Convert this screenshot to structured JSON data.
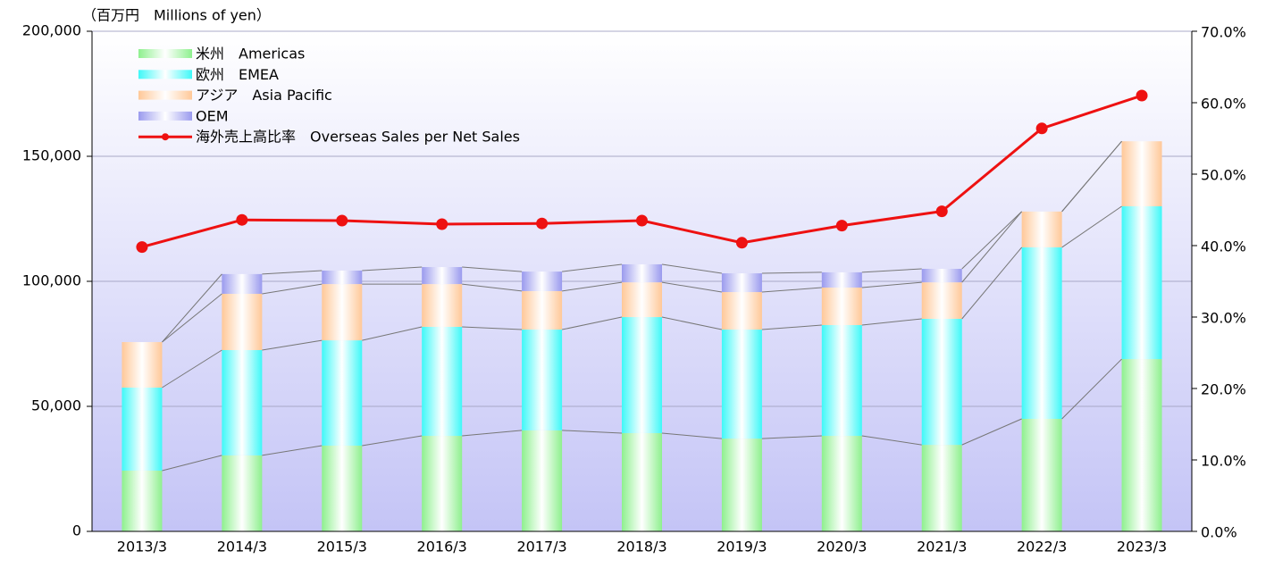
{
  "chart_data": {
    "type": "bar",
    "y_label": "（百万円　Millions of yen）",
    "categories": [
      "2013/3",
      "2014/3",
      "2015/3",
      "2016/3",
      "2017/3",
      "2018/3",
      "2019/3",
      "2020/3",
      "2021/3",
      "2022/3",
      "2023/3"
    ],
    "series": [
      {
        "name": "米州　Americas",
        "color": "#8ef08e",
        "values": [
          24.3,
          30.4,
          34.3,
          38.2,
          40.4,
          39.3,
          37.1,
          38.2,
          34.6,
          45.0,
          68.9
        ]
      },
      {
        "name": "欧州　EMEA",
        "color": "#3ff8f8",
        "values": [
          33.2,
          42.1,
          42.1,
          43.6,
          40.3,
          46.4,
          43.6,
          44.3,
          50.4,
          68.6,
          61.1
        ]
      },
      {
        "name": "アジア　Asia Pacific",
        "color": "#ffc898",
        "values": [
          18.2,
          22.5,
          22.5,
          17.1,
          15.4,
          13.9,
          15.0,
          15.0,
          14.6,
          14.3,
          26.0
        ]
      },
      {
        "name": "OEM",
        "color": "#9a9aee",
        "values": [
          0,
          7.9,
          5.4,
          6.8,
          7.8,
          7.2,
          7.5,
          6.1,
          5.4,
          0,
          0
        ]
      },
      {
        "name": "海外売上高比率　Overseas Sales per Net Sales",
        "color": "#ee1111",
        "type": "line",
        "axis": "y2",
        "values": [
          39.8,
          43.6,
          43.5,
          43.0,
          43.1,
          43.5,
          40.4,
          42.8,
          44.8,
          56.4,
          61.0
        ]
      }
    ],
    "ylim": [
      0,
      200000
    ],
    "yticks": [
      0,
      {
        "value": 50000,
        "label": "50,000"
      },
      {
        "value": 100000,
        "label": "100,000"
      },
      {
        "value": 150000,
        "label": "150,000"
      },
      {
        "value": 200000,
        "label": "200,000"
      }
    ],
    "y2lim": [
      0,
      70
    ],
    "y2ticks": [
      {
        "value": 0,
        "label": "0.0%"
      },
      {
        "value": 10,
        "label": "10.0%"
      },
      {
        "value": 20,
        "label": "20.0%"
      },
      {
        "value": 30,
        "label": "30.0%"
      },
      {
        "value": 40,
        "label": "40.0%"
      },
      {
        "value": 50,
        "label": "50.0%"
      },
      {
        "value": 60,
        "label": "60.0%"
      },
      {
        "value": 70,
        "label": "70.0%"
      }
    ],
    "value_scale": 1000,
    "grid": true,
    "legend": "top-left"
  }
}
